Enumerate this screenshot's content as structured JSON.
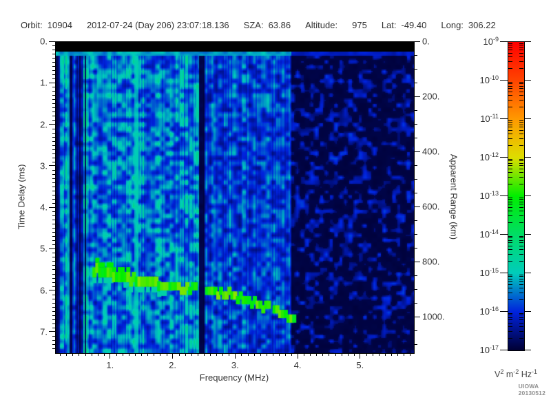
{
  "header": {
    "items": [
      {
        "label": "Orbit:",
        "value": "10904"
      },
      {
        "label": "",
        "value": "2012-07-24 (Day 206) 23:07:18.136"
      },
      {
        "label": "SZA:",
        "value": "63.86"
      },
      {
        "label": "Altitude:",
        "value": "975",
        "wide": true
      },
      {
        "label": "Lat:",
        "value": "-49.40"
      },
      {
        "label": "Long:",
        "value": "306.22"
      }
    ]
  },
  "chart_data": {
    "type": "heatmap",
    "title": "",
    "xlabel": "Frequency (MHz)",
    "ylabel_left": "Time Delay (ms)",
    "ylabel_right": "Apparent Range (km)",
    "x_range_mhz": [
      0.12,
      5.85
    ],
    "x_ticks": [
      {
        "v": 1,
        "label": "1."
      },
      {
        "v": 2,
        "label": "2."
      },
      {
        "v": 3,
        "label": "3."
      },
      {
        "v": 4,
        "label": "4."
      },
      {
        "v": 5,
        "label": "5."
      }
    ],
    "x_minor_step_mhz": 0.1,
    "y_left_range_ms": [
      0,
      7.5
    ],
    "y_left_ticks": [
      {
        "v": 0,
        "label": "0."
      },
      {
        "v": 1,
        "label": "1."
      },
      {
        "v": 2,
        "label": "2."
      },
      {
        "v": 3,
        "label": "3."
      },
      {
        "v": 4,
        "label": "4."
      },
      {
        "v": 5,
        "label": "5."
      },
      {
        "v": 6,
        "label": "6."
      },
      {
        "v": 7,
        "label": "7."
      }
    ],
    "y_left_minor_step_ms": 0.1,
    "y_right_range_km": [
      0,
      1130
    ],
    "y_right_ticks": [
      {
        "v": 0,
        "label": "0."
      },
      {
        "v": 200,
        "label": "200."
      },
      {
        "v": 400,
        "label": "400."
      },
      {
        "v": 600,
        "label": "600."
      },
      {
        "v": 800,
        "label": "800."
      },
      {
        "v": 1000,
        "label": "1000."
      }
    ],
    "y_right_minor_step_km": 50,
    "features": {
      "transmit_blank_ms": [
        0,
        0.215
      ],
      "surface_return_ms": [
        0.215,
        0.305
      ],
      "interference_stripes_mhz": [
        0.12,
        0.62
      ],
      "secondary_bright_column_mhz": 0.3,
      "bright_interference_line_mhz": 1.4,
      "absorption_gap_mhz": [
        2.41,
        2.5
      ],
      "quiet_band_mhz": [
        3.88,
        5.85
      ],
      "ionospheric_echo_trace": {
        "color_hint": "green",
        "points_mhz_ms": [
          [
            0.76,
            5.52
          ],
          [
            1.0,
            5.62
          ],
          [
            1.3,
            5.72
          ],
          [
            1.6,
            5.8
          ],
          [
            2.0,
            5.9
          ],
          [
            2.42,
            5.97
          ],
          [
            2.8,
            6.05
          ],
          [
            3.1,
            6.18
          ],
          [
            3.35,
            6.33
          ],
          [
            3.6,
            6.45
          ],
          [
            3.95,
            6.62
          ]
        ]
      }
    },
    "colorbar": {
      "scale": "log10",
      "tick_exponents": [
        -9,
        -10,
        -11,
        -12,
        -13,
        -14,
        -15,
        -16,
        -17
      ],
      "units_parts": [
        {
          "t": "V"
        },
        {
          "sup": "2"
        },
        {
          "t": " m"
        },
        {
          "sup": "-2"
        },
        {
          "t": " Hz"
        },
        {
          "sup": "-1"
        }
      ],
      "gradient_stops": [
        {
          "pos": 0.0,
          "hex": "#000033"
        },
        {
          "pos": 0.125,
          "hex": "#0022dd"
        },
        {
          "pos": 0.25,
          "hex": "#00ccbb"
        },
        {
          "pos": 0.375,
          "hex": "#00dd66"
        },
        {
          "pos": 0.5,
          "hex": "#00ee00"
        },
        {
          "pos": 0.625,
          "hex": "#dddd00"
        },
        {
          "pos": 0.75,
          "hex": "#ff9900"
        },
        {
          "pos": 0.875,
          "hex": "#ff4400"
        },
        {
          "pos": 1.0,
          "hex": "#ff0000"
        }
      ]
    }
  },
  "credit": "UIOWA 20130512"
}
